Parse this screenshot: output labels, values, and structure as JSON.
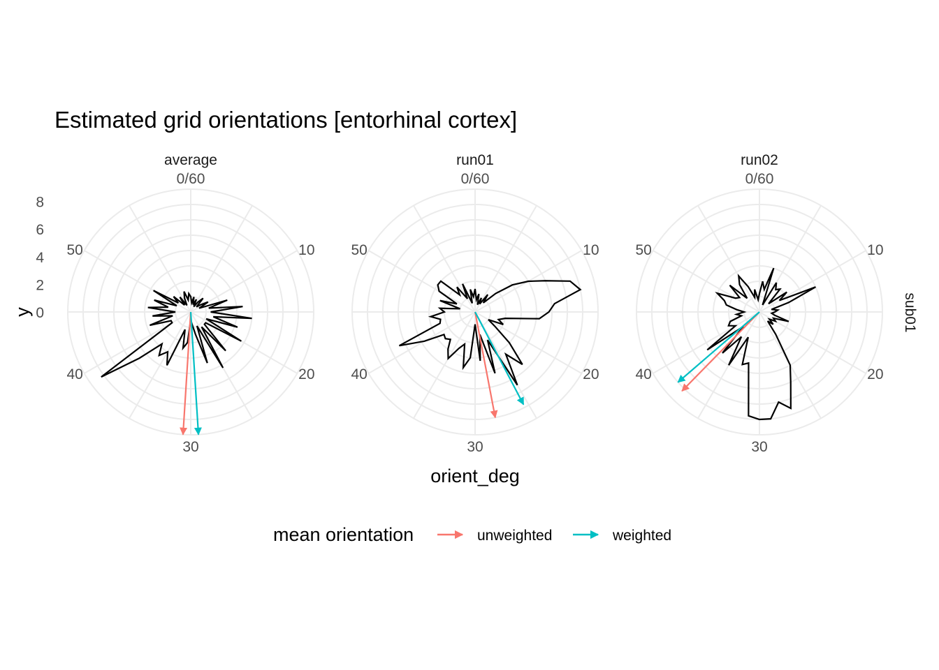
{
  "chart_data": {
    "type": "polar-line",
    "title": "Estimated grid orientations [entorhinal cortex]",
    "xlabel": "orient_deg",
    "ylabel": "y",
    "theta_range": [
      0,
      60
    ],
    "theta_ticks": [
      "0/60",
      "10",
      "20",
      "30",
      "40",
      "50"
    ],
    "r_range": [
      0,
      8
    ],
    "r_ticks": [
      "0",
      "2",
      "4",
      "6",
      "8"
    ],
    "row_strip": "sub01",
    "legend": {
      "title": "mean orientation",
      "position": "bottom",
      "entries": [
        {
          "label": "unweighted",
          "color": "#F8766D"
        },
        {
          "label": "weighted",
          "color": "#00BFC4"
        }
      ]
    },
    "panels": [
      {
        "name": "average",
        "profile": [
          [
            0,
            1
          ],
          [
            1,
            0.6
          ],
          [
            2,
            1
          ],
          [
            3,
            0.5
          ],
          [
            4,
            0.9
          ],
          [
            5,
            0.4
          ],
          [
            6,
            0.8
          ],
          [
            7,
            1.2
          ],
          [
            8,
            0.5
          ],
          [
            9,
            0.8
          ],
          [
            10,
            1.3
          ],
          [
            11,
            0.6
          ],
          [
            12,
            2.5
          ],
          [
            13,
            1.2
          ],
          [
            14,
            3.4
          ],
          [
            15,
            1.3
          ],
          [
            16,
            4
          ],
          [
            17,
            1.5
          ],
          [
            18,
            3.2
          ],
          [
            19,
            1.1
          ],
          [
            20,
            3.8
          ],
          [
            21,
            1.2
          ],
          [
            22,
            1.2
          ],
          [
            23,
            3.4
          ],
          [
            24,
            1.2
          ],
          [
            25,
            4.2
          ],
          [
            26,
            1
          ],
          [
            27,
            3.5
          ],
          [
            28,
            1.5
          ],
          [
            29,
            0.8
          ],
          [
            30,
            0.5
          ],
          [
            31,
            2
          ],
          [
            32,
            2.4
          ],
          [
            33,
            1.2
          ],
          [
            34,
            3.8
          ],
          [
            35,
            3
          ],
          [
            36,
            3.5
          ],
          [
            37,
            2.8
          ],
          [
            38,
            4.5
          ],
          [
            39,
            7.2
          ],
          [
            40,
            1.4
          ],
          [
            41,
            1.4
          ],
          [
            42,
            2.8
          ],
          [
            43,
            1.2
          ],
          [
            44,
            2.5
          ],
          [
            45,
            1
          ],
          [
            46,
            2.8
          ],
          [
            47,
            1.5
          ],
          [
            48,
            2.5
          ],
          [
            49,
            1
          ],
          [
            50,
            2.8
          ],
          [
            51,
            1
          ],
          [
            52,
            1.5
          ],
          [
            53,
            0.6
          ],
          [
            54,
            1.2
          ],
          [
            55,
            0.5
          ],
          [
            56,
            1
          ],
          [
            57,
            1.4
          ],
          [
            58,
            0.8
          ],
          [
            59,
            1.2
          ]
        ],
        "mean_orientation": [
          {
            "type": "unweighted",
            "angle": 30.6,
            "length": 8.0
          },
          {
            "type": "weighted",
            "angle": 29.4,
            "length": 8.0
          }
        ]
      },
      {
        "name": "run01",
        "profile": [
          [
            0,
            1.5
          ],
          [
            1,
            0.8
          ],
          [
            2,
            1.2
          ],
          [
            3,
            0.5
          ],
          [
            4,
            1
          ],
          [
            5,
            0.6
          ],
          [
            6,
            1.4
          ],
          [
            7,
            0.8
          ],
          [
            8,
            1.8
          ],
          [
            9,
            3
          ],
          [
            10,
            4
          ],
          [
            11,
            5
          ],
          [
            12,
            6.5
          ],
          [
            13,
            7
          ],
          [
            14,
            5.2
          ],
          [
            15,
            4.8
          ],
          [
            16,
            4.2
          ],
          [
            17,
            2
          ],
          [
            18,
            1.6
          ],
          [
            19,
            2
          ],
          [
            20,
            1
          ],
          [
            21,
            1.6
          ],
          [
            22,
            3
          ],
          [
            23,
            4.6
          ],
          [
            24,
            3.4
          ],
          [
            25,
            5.5
          ],
          [
            26,
            2
          ],
          [
            27,
            4.2
          ],
          [
            28,
            1.5
          ],
          [
            29,
            3.2
          ],
          [
            30,
            0.8
          ],
          [
            31,
            3
          ],
          [
            32,
            3.7
          ],
          [
            33,
            2.2
          ],
          [
            34,
            2.6
          ],
          [
            35,
            3.5
          ],
          [
            36,
            3
          ],
          [
            37,
            2.4
          ],
          [
            38,
            2.6
          ],
          [
            39,
            2.5
          ],
          [
            40,
            3.8
          ],
          [
            41,
            5.4
          ],
          [
            42,
            2.4
          ],
          [
            43,
            2.3
          ],
          [
            44,
            2.9
          ],
          [
            45,
            2
          ],
          [
            46,
            2.3
          ],
          [
            47,
            1
          ],
          [
            48,
            2.4
          ],
          [
            49,
            1.3
          ],
          [
            50,
            2.7
          ],
          [
            51,
            3
          ],
          [
            52,
            3
          ],
          [
            53,
            1.5
          ],
          [
            54,
            2
          ],
          [
            55,
            1
          ],
          [
            56,
            2
          ],
          [
            57,
            0.6
          ],
          [
            58,
            1.5
          ],
          [
            59,
            1
          ]
        ],
        "mean_orientation": [
          {
            "type": "unweighted",
            "angle": 28.2,
            "length": 7.0
          },
          {
            "type": "weighted",
            "angle": 25.4,
            "length": 6.8
          }
        ]
      },
      {
        "name": "run02",
        "profile": [
          [
            0,
            1.2
          ],
          [
            1,
            2
          ],
          [
            2,
            1.5
          ],
          [
            3,
            3
          ],
          [
            4,
            0.5
          ],
          [
            5,
            2.2
          ],
          [
            6,
            1.8
          ],
          [
            7,
            2
          ],
          [
            8,
            0.8
          ],
          [
            9,
            2.2
          ],
          [
            10,
            1.5
          ],
          [
            11,
            4
          ],
          [
            12,
            2
          ],
          [
            13,
            0.8
          ],
          [
            14,
            1.2
          ],
          [
            15,
            1
          ],
          [
            16,
            0.8
          ],
          [
            17,
            1
          ],
          [
            18,
            2
          ],
          [
            19,
            1
          ],
          [
            20,
            1.2
          ],
          [
            21,
            0.8
          ],
          [
            22,
            1.2
          ],
          [
            23,
            0.8
          ],
          [
            24,
            1.8
          ],
          [
            25,
            4
          ],
          [
            26,
            5
          ],
          [
            27,
            6.6
          ],
          [
            28,
            6
          ],
          [
            29,
            7
          ],
          [
            30,
            7
          ],
          [
            31,
            6.8
          ],
          [
            32,
            3.4
          ],
          [
            33,
            3.6
          ],
          [
            34,
            1.8
          ],
          [
            35,
            4
          ],
          [
            36,
            2
          ],
          [
            37,
            3.6
          ],
          [
            38,
            1.4
          ],
          [
            39,
            4.2
          ],
          [
            40,
            1.8
          ],
          [
            41,
            2.2
          ],
          [
            42,
            2
          ],
          [
            43,
            1.2
          ],
          [
            44,
            1.5
          ],
          [
            45,
            1
          ],
          [
            46,
            1.5
          ],
          [
            47,
            2.2
          ],
          [
            48,
            2.4
          ],
          [
            49,
            3
          ],
          [
            50,
            1.8
          ],
          [
            51,
            1.6
          ],
          [
            52,
            2.6
          ],
          [
            53,
            1.2
          ],
          [
            54,
            2.2
          ],
          [
            55,
            2.7
          ],
          [
            56,
            1.8
          ],
          [
            57,
            1
          ],
          [
            58,
            1.5
          ],
          [
            59,
            0.8
          ]
        ],
        "mean_orientation": [
          {
            "type": "unweighted",
            "angle": 37.4,
            "length": 7.2
          },
          {
            "type": "weighted",
            "angle": 38.2,
            "length": 7.0
          }
        ]
      }
    ]
  }
}
